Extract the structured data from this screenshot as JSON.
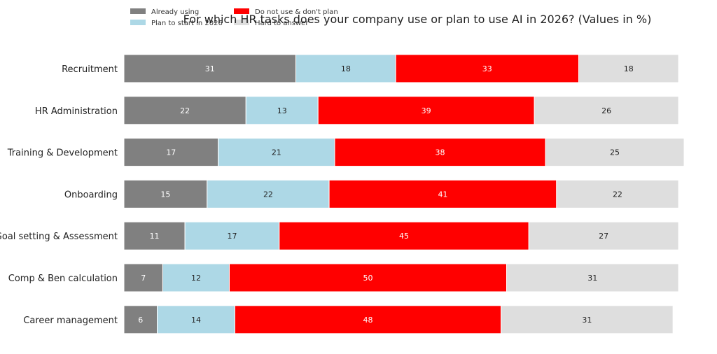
{
  "chart_data": {
    "type": "bar",
    "orientation": "horizontal",
    "stacked": true,
    "title": "For which HR tasks does your company use or plan to use AI in 2026? (Values in %)",
    "xlabel": "",
    "ylabel": "",
    "xlim": [
      0,
      101
    ],
    "grid": false,
    "legend_position": "top-left",
    "categories": [
      "Recruitment",
      "HR Administration",
      "Training & Development",
      "Onboarding",
      "Goal setting & Assessment",
      "Comp & Ben calculation",
      "Career management"
    ],
    "series": [
      {
        "name": "Already using",
        "color": "#808080",
        "label_color": "#ffffff",
        "values": [
          31,
          22,
          17,
          15,
          11,
          7,
          6
        ]
      },
      {
        "name": "Plan to start in 2026",
        "color": "#add8e6",
        "label_color": "#222222",
        "values": [
          18,
          13,
          21,
          22,
          17,
          12,
          14
        ]
      },
      {
        "name": "Do not use & don't plan",
        "color": "#ff0000",
        "label_color": "#ffffff",
        "values": [
          33,
          39,
          38,
          41,
          45,
          50,
          48
        ]
      },
      {
        "name": "Hard to answer",
        "color": "#dedede",
        "label_color": "#222222",
        "values": [
          18,
          26,
          25,
          22,
          27,
          31,
          31
        ]
      }
    ]
  }
}
